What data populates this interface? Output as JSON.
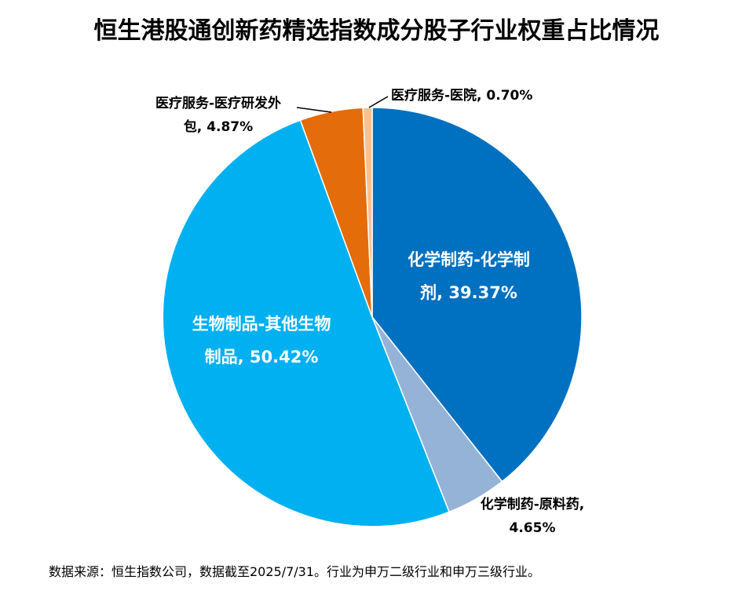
{
  "title": "恒生港股通创新药精选指数成分股子行业权重占比情况",
  "source_note": "数据来源：恒生指数公司，数据截至2025/7/31。行业为申万二级行业和申万三级行业。",
  "chart_data": {
    "type": "pie",
    "title": "恒生港股通创新药精选指数成分股子行业权重占比情况",
    "start": "top",
    "direction": "clockwise",
    "slices": [
      {
        "label_lines": [
          "化学制药-化学制",
          "剂, 39.37%"
        ],
        "value": 39.37,
        "color": "#0070C0"
      },
      {
        "label_lines": [
          "化学制药-原料药,",
          "4.65%"
        ],
        "value": 4.65,
        "color": "#95B3D7"
      },
      {
        "label_lines": [
          "生物制品-其他生物",
          "制品, 50.42%"
        ],
        "value": 50.42,
        "color": "#00B0F0"
      },
      {
        "label_lines": [
          "医疗服务-医疗研发外",
          "包, 4.87%"
        ],
        "value": 4.87,
        "color": "#E46C0A"
      },
      {
        "label_lines": [
          "医疗服务-医院, 0.70%"
        ],
        "value": 0.7,
        "color": "#FAC090"
      }
    ]
  }
}
